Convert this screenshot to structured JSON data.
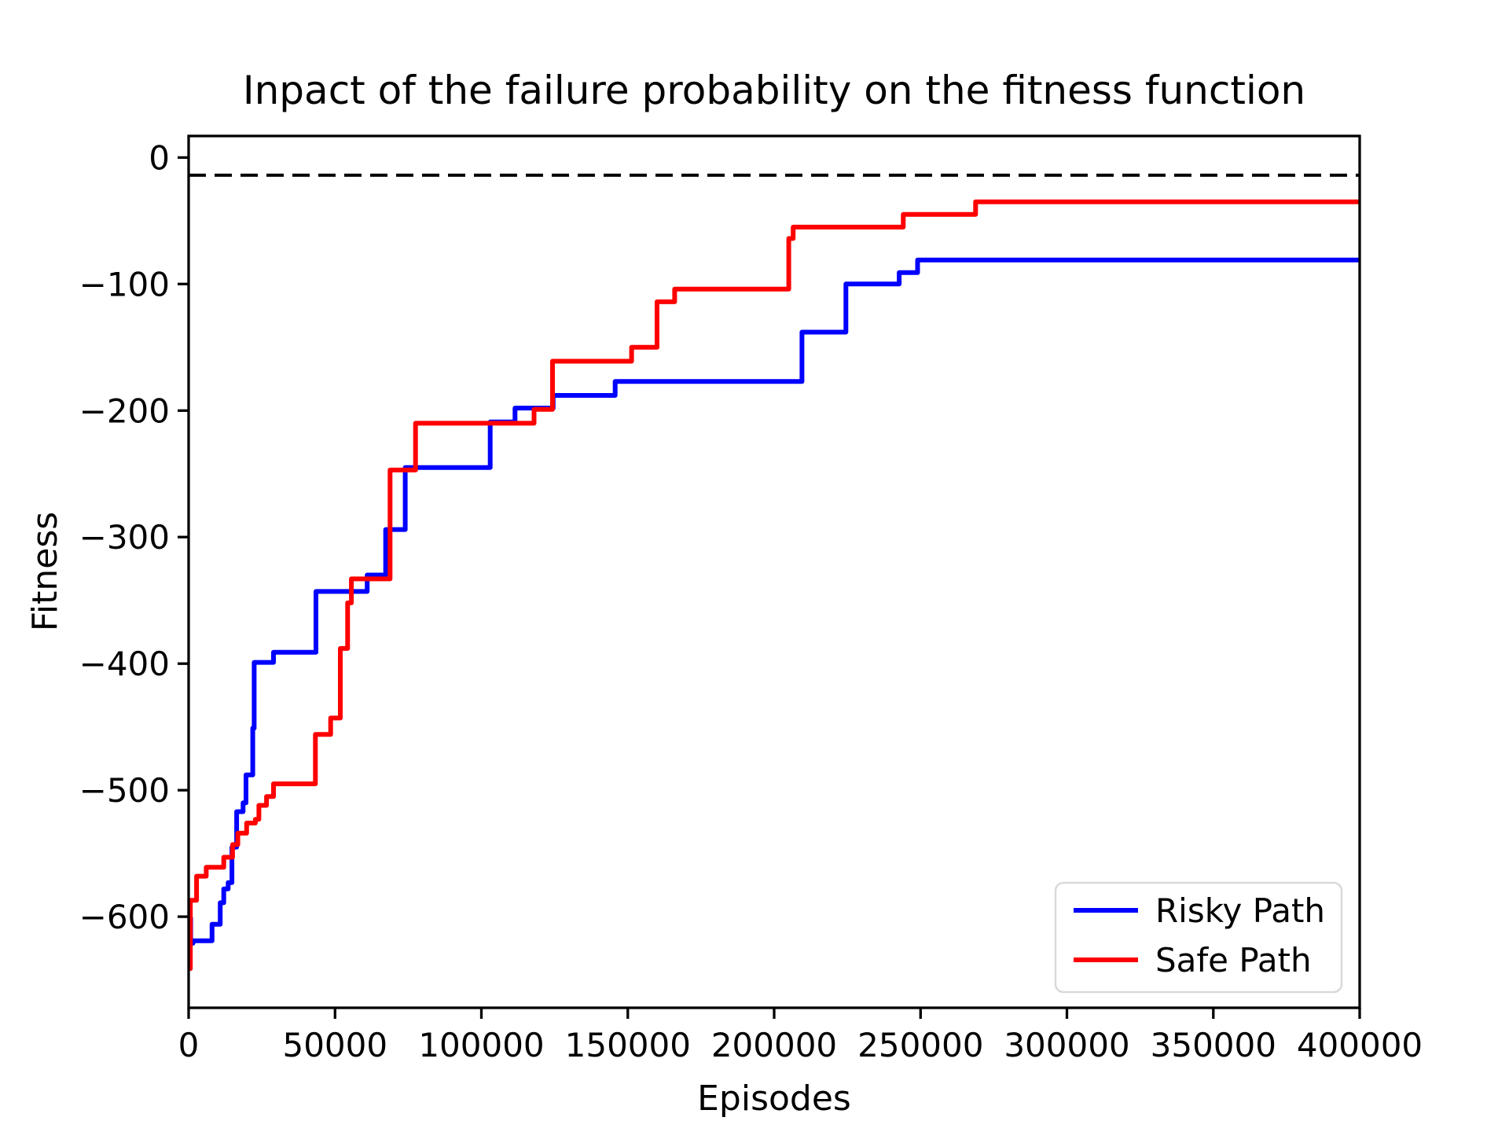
{
  "figure": {
    "background": "#ffffff",
    "title": "Inpact of the failure probability on the fitness function"
  },
  "chart_data": {
    "type": "line",
    "title": "Inpact of the failure probability on the fitness function",
    "xlabel": "Episodes",
    "ylabel": "Fitness",
    "xlim": [
      0,
      400000
    ],
    "ylim": [
      -672,
      17
    ],
    "grid": false,
    "legend_position": "lower right",
    "x_ticks": [
      {
        "v": 0,
        "label": "0"
      },
      {
        "v": 50000,
        "label": "50000"
      },
      {
        "v": 100000,
        "label": "100000"
      },
      {
        "v": 150000,
        "label": "150000"
      },
      {
        "v": 200000,
        "label": "200000"
      },
      {
        "v": 250000,
        "label": "250000"
      },
      {
        "v": 300000,
        "label": "300000"
      },
      {
        "v": 350000,
        "label": "350000"
      },
      {
        "v": 400000,
        "label": "400000"
      }
    ],
    "y_ticks": [
      {
        "v": 0,
        "label": "0"
      },
      {
        "v": -100,
        "label": "−100"
      },
      {
        "v": -200,
        "label": "−200"
      },
      {
        "v": -300,
        "label": "−300"
      },
      {
        "v": -400,
        "label": "−400"
      },
      {
        "v": -500,
        "label": "−500"
      },
      {
        "v": -600,
        "label": "−600"
      }
    ],
    "reference_line": {
      "y": -14,
      "style": "dashed",
      "color": "#000000",
      "linewidth": 4,
      "dash": "22 11"
    },
    "step_mode": "after",
    "series": [
      {
        "name": "Risky Path",
        "color": "#0000ff",
        "linewidth": 6,
        "points": [
          [
            300,
            -601
          ],
          [
            700,
            -621
          ],
          [
            1500,
            -619
          ],
          [
            8000,
            -606
          ],
          [
            10800,
            -589
          ],
          [
            12000,
            -578
          ],
          [
            13500,
            -573
          ],
          [
            14800,
            -545
          ],
          [
            16400,
            -517
          ],
          [
            18600,
            -510
          ],
          [
            19600,
            -488
          ],
          [
            21900,
            -451
          ],
          [
            22400,
            -399
          ],
          [
            29000,
            -391
          ],
          [
            43500,
            -343
          ],
          [
            61000,
            -330
          ],
          [
            67300,
            -294
          ],
          [
            74000,
            -245
          ],
          [
            103000,
            -209
          ],
          [
            111500,
            -198
          ],
          [
            124500,
            -188
          ],
          [
            145700,
            -177
          ],
          [
            209500,
            -138
          ],
          [
            224500,
            -100
          ],
          [
            242700,
            -91
          ],
          [
            249000,
            -81
          ],
          [
            400000,
            -81
          ]
        ]
      },
      {
        "name": "Safe Path",
        "color": "#ff0000",
        "linewidth": 6,
        "points": [
          [
            0,
            -641
          ],
          [
            600,
            -587
          ],
          [
            2700,
            -568
          ],
          [
            6000,
            -561
          ],
          [
            12000,
            -553
          ],
          [
            15000,
            -543
          ],
          [
            16800,
            -534
          ],
          [
            19800,
            -526
          ],
          [
            22800,
            -523
          ],
          [
            24000,
            -512
          ],
          [
            26600,
            -505
          ],
          [
            29000,
            -495
          ],
          [
            43300,
            -456
          ],
          [
            48500,
            -443
          ],
          [
            51800,
            -388
          ],
          [
            54300,
            -352
          ],
          [
            55600,
            -333
          ],
          [
            68800,
            -247
          ],
          [
            77500,
            -210
          ],
          [
            118000,
            -199
          ],
          [
            124300,
            -161
          ],
          [
            151300,
            -150
          ],
          [
            160000,
            -114
          ],
          [
            166000,
            -104
          ],
          [
            205000,
            -64
          ],
          [
            206500,
            -55
          ],
          [
            244100,
            -45
          ],
          [
            268800,
            -35
          ],
          [
            400000,
            -35
          ]
        ]
      }
    ]
  },
  "legend": {
    "entries": [
      {
        "label": "Risky Path",
        "color": "#0000ff"
      },
      {
        "label": "Safe Path",
        "color": "#ff0000"
      }
    ]
  }
}
